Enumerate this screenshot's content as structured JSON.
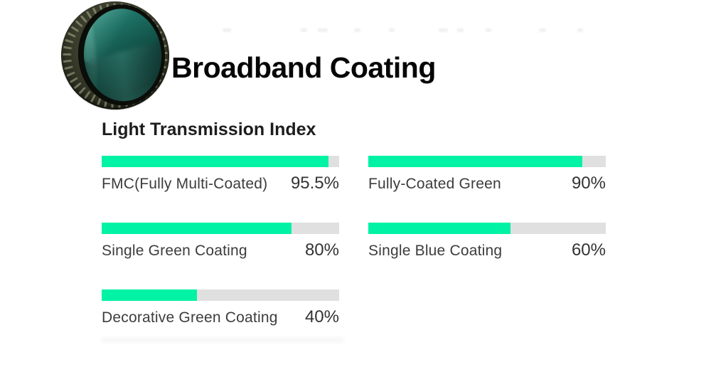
{
  "header": {
    "title": "Broadband Coating",
    "lens_image": "green-coated-lens-photo"
  },
  "chart": {
    "title": "Light Transmission Index",
    "bar_color": "#00f2a4",
    "track_color": "#e0e0e0",
    "rows": [
      {
        "label": "FMC(Fully Multi-Coated)",
        "value": 95.5,
        "value_label": "95.5%"
      },
      {
        "label": "Fully-Coated Green",
        "value": 90,
        "value_label": "90%"
      },
      {
        "label": "Single Green Coating",
        "value": 80,
        "value_label": "80%"
      },
      {
        "label": "Single Blue Coating",
        "value": 60,
        "value_label": "60%"
      },
      {
        "label": "Decorative Green Coating",
        "value": 40,
        "value_label": "40%"
      }
    ]
  },
  "chart_data": {
    "type": "bar",
    "orientation": "horizontal",
    "title": "Light Transmission Index",
    "categories": [
      "FMC(Fully Multi-Coated)",
      "Fully-Coated Green",
      "Single Green Coating",
      "Single Blue Coating",
      "Decorative Green Coating"
    ],
    "values": [
      95.5,
      90,
      80,
      60,
      40
    ],
    "value_labels": [
      "95.5%",
      "90%",
      "80%",
      "60%",
      "40%"
    ],
    "xlabel": "",
    "ylabel": "",
    "xlim": [
      0,
      100
    ],
    "grid": false,
    "legend": false,
    "layout": "two-column grid of progress bars; label below-left of each bar, value below-right",
    "bar_color": "#00f2a4",
    "track_color": "#e0e0e0"
  }
}
